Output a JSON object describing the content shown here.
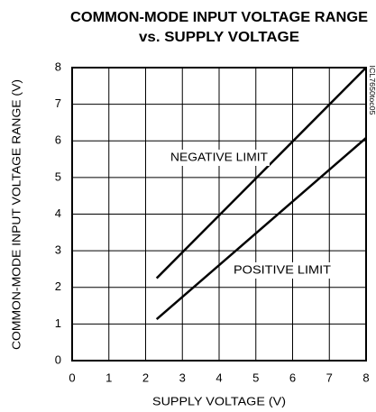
{
  "chart_data": {
    "type": "line",
    "title": [
      "COMMON-MODE INPUT VOLTAGE RANGE",
      "vs. SUPPLY VOLTAGE"
    ],
    "x_label": "SUPPLY VOLTAGE (V)",
    "y_label": "COMMON-MODE INPUT VOLTAGE RANGE (V)",
    "watermark": "ICL7650toc05",
    "x": [
      2.3,
      8
    ],
    "series": [
      {
        "name": "NEGATIVE LIMIT",
        "color": "#000000",
        "values": [
          2.25,
          8
        ]
      },
      {
        "name": "POSITIVE LIMIT",
        "color": "#000000",
        "values": [
          1.13,
          6.08
        ]
      }
    ],
    "xlim": [
      0,
      8
    ],
    "xticks": [
      0,
      1,
      2,
      3,
      4,
      5,
      6,
      7,
      8
    ],
    "ylim": [
      0,
      8
    ],
    "yticks": [
      0,
      1,
      2,
      3,
      4,
      5,
      6,
      7,
      8
    ],
    "grid": true
  }
}
